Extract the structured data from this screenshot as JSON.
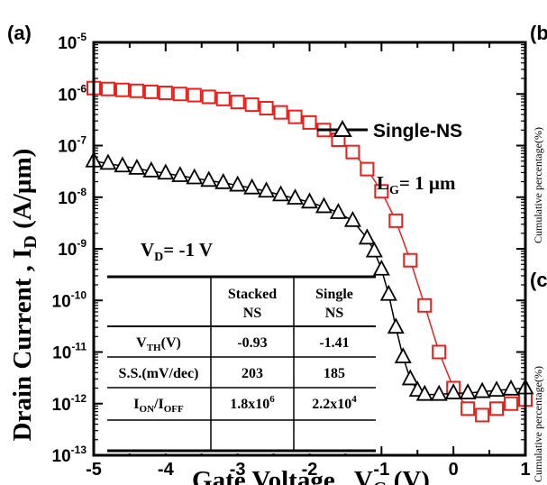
{
  "panel_label": "(a)",
  "right_edge": {
    "top_letter": "(b",
    "mid_letter": "(c",
    "ylabel_top": "Cumulative percentage(%)",
    "ylabel_bottom": "Cumulative percentage(%)"
  },
  "chart_data": {
    "type": "scatter",
    "xlabel": "Gate Voltage , VG (V)",
    "ylabel": "Drain Current , ID (A/µm)",
    "xlim": [
      -5,
      1
    ],
    "ylim": [
      1e-13,
      1e-05
    ],
    "yscale": "log",
    "x_ticks": [
      "-5",
      "-4",
      "-3",
      "-2",
      "-1",
      "0",
      "1"
    ],
    "y_tick_exponents": [
      "-13",
      "-12",
      "-11",
      "-10",
      "-9",
      "-8",
      "-7",
      "-6",
      "-5"
    ],
    "legend": {
      "placement": "top-right",
      "entries": [
        {
          "name": "Single-NS",
          "marker": "triangle",
          "color": "#000000"
        }
      ]
    },
    "annotations": {
      "lg_main": "L",
      "lg_sub": "G",
      "lg_val": "= 1 µm",
      "vd_main": "V",
      "vd_sub": "D",
      "vd_val": "= -1 V"
    },
    "series": [
      {
        "name": "Stacked NS",
        "marker": "square",
        "color": "#e8201c",
        "x": [
          -5,
          -4.8,
          -4.6,
          -4.4,
          -4.2,
          -4,
          -3.8,
          -3.6,
          -3.4,
          -3.2,
          -3,
          -2.8,
          -2.6,
          -2.4,
          -2.2,
          -2,
          -1.8,
          -1.6,
          -1.4,
          -1.2,
          -1,
          -0.8,
          -0.6,
          -0.4,
          -0.2,
          0,
          0.2,
          0.4,
          0.6,
          0.8,
          1
        ],
        "y": [
          1.3e-06,
          1.25e-06,
          1.2e-06,
          1.15e-06,
          1.1e-06,
          1.05e-06,
          1e-06,
          9.5e-07,
          8.8e-07,
          8e-07,
          7e-07,
          6.2e-07,
          5.3e-07,
          4.4e-07,
          3.6e-07,
          2.8e-07,
          2e-07,
          1.3e-07,
          7.5e-08,
          3.5e-08,
          1.3e-08,
          3.5e-09,
          6e-10,
          8e-11,
          1e-11,
          2e-12,
          8e-13,
          6e-13,
          8e-13,
          1e-12,
          1.2e-12
        ]
      },
      {
        "name": "Single-NS",
        "marker": "triangle",
        "color": "#000000",
        "x": [
          -5,
          -4.8,
          -4.6,
          -4.4,
          -4.2,
          -4,
          -3.8,
          -3.6,
          -3.4,
          -3.2,
          -3,
          -2.8,
          -2.6,
          -2.4,
          -2.2,
          -2,
          -1.8,
          -1.6,
          -1.4,
          -1.2,
          -1.1,
          -1,
          -0.9,
          -0.8,
          -0.7,
          -0.6,
          -0.5,
          -0.4,
          -0.2,
          0,
          0.2,
          0.4,
          0.6,
          0.8,
          1
        ],
        "y": [
          5e-08,
          4.5e-08,
          4e-08,
          3.6e-08,
          3.2e-08,
          2.9e-08,
          2.6e-08,
          2.35e-08,
          2.1e-08,
          1.9e-08,
          1.7e-08,
          1.5e-08,
          1.3e-08,
          1.1e-08,
          9.5e-09,
          8e-09,
          6.5e-09,
          5e-09,
          3.5e-09,
          1.6e-09,
          9e-10,
          4e-10,
          1.3e-10,
          3e-11,
          8e-12,
          3e-12,
          1.8e-12,
          1.5e-12,
          1.5e-12,
          1.6e-12,
          1.6e-12,
          1.7e-12,
          1.8e-12,
          1.9e-12,
          2e-12
        ]
      }
    ]
  },
  "table": {
    "headers": [
      [
        "",
        ""
      ],
      [
        "Stacked",
        "NS"
      ],
      [
        "Single",
        "NS"
      ]
    ],
    "rows": [
      {
        "label_main": "V",
        "label_sub": "TH",
        "label_rest": "(V)",
        "stacked": "-0.93",
        "single": "-1.41"
      },
      {
        "label_main": "S.S.(mV/dec)",
        "label_sub": "",
        "label_rest": "",
        "stacked": "203",
        "single": "185"
      },
      {
        "label_main": "I",
        "label_sub": "ON",
        "label_rest": "/I",
        "label_sub2": "OFF",
        "stacked_base": "1.8x10",
        "stacked_exp": "6",
        "single_base": "2.2x10",
        "single_exp": "4"
      }
    ]
  }
}
